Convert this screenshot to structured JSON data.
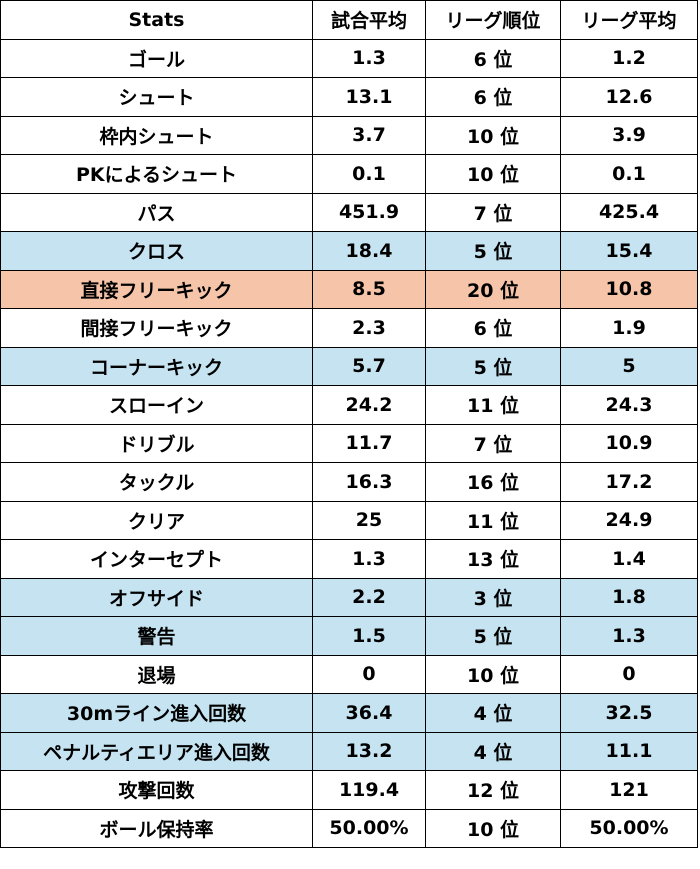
{
  "colors": {
    "highlight_blue": "#c5e3f1",
    "highlight_orange": "#f6c5a9",
    "border": "#000000",
    "background": "#ffffff"
  },
  "table": {
    "headers": [
      "Stats",
      "試合平均",
      "リーグ順位",
      "リーグ平均"
    ],
    "rows": [
      {
        "stat": "ゴール",
        "avg": "1.3",
        "rank": "6 位",
        "league_avg": "1.2",
        "highlight": "none"
      },
      {
        "stat": "シュート",
        "avg": "13.1",
        "rank": "6 位",
        "league_avg": "12.6",
        "highlight": "none"
      },
      {
        "stat": "枠内シュート",
        "avg": "3.7",
        "rank": "10 位",
        "league_avg": "3.9",
        "highlight": "none"
      },
      {
        "stat": "PKによるシュート",
        "avg": "0.1",
        "rank": "10 位",
        "league_avg": "0.1",
        "highlight": "none"
      },
      {
        "stat": "パス",
        "avg": "451.9",
        "rank": "7 位",
        "league_avg": "425.4",
        "highlight": "none"
      },
      {
        "stat": "クロス",
        "avg": "18.4",
        "rank": "5 位",
        "league_avg": "15.4",
        "highlight": "blue"
      },
      {
        "stat": "直接フリーキック",
        "avg": "8.5",
        "rank": "20 位",
        "league_avg": "10.8",
        "highlight": "orange"
      },
      {
        "stat": "間接フリーキック",
        "avg": "2.3",
        "rank": "6 位",
        "league_avg": "1.9",
        "highlight": "none"
      },
      {
        "stat": "コーナーキック",
        "avg": "5.7",
        "rank": "5 位",
        "league_avg": "5",
        "highlight": "blue"
      },
      {
        "stat": "スローイン",
        "avg": "24.2",
        "rank": "11 位",
        "league_avg": "24.3",
        "highlight": "none"
      },
      {
        "stat": "ドリブル",
        "avg": "11.7",
        "rank": "7 位",
        "league_avg": "10.9",
        "highlight": "none"
      },
      {
        "stat": "タックル",
        "avg": "16.3",
        "rank": "16 位",
        "league_avg": "17.2",
        "highlight": "none"
      },
      {
        "stat": "クリア",
        "avg": "25",
        "rank": "11 位",
        "league_avg": "24.9",
        "highlight": "none"
      },
      {
        "stat": "インターセプト",
        "avg": "1.3",
        "rank": "13 位",
        "league_avg": "1.4",
        "highlight": "none"
      },
      {
        "stat": "オフサイド",
        "avg": "2.2",
        "rank": "3 位",
        "league_avg": "1.8",
        "highlight": "blue"
      },
      {
        "stat": "警告",
        "avg": "1.5",
        "rank": "5 位",
        "league_avg": "1.3",
        "highlight": "blue"
      },
      {
        "stat": "退場",
        "avg": "0",
        "rank": "10 位",
        "league_avg": "0",
        "highlight": "none"
      },
      {
        "stat": "30mライン進入回数",
        "avg": "36.4",
        "rank": "4 位",
        "league_avg": "32.5",
        "highlight": "blue"
      },
      {
        "stat": "ペナルティエリア進入回数",
        "avg": "13.2",
        "rank": "4 位",
        "league_avg": "11.1",
        "highlight": "blue"
      },
      {
        "stat": "攻撃回数",
        "avg": "119.4",
        "rank": "12 位",
        "league_avg": "121",
        "highlight": "none"
      },
      {
        "stat": "ボール保持率",
        "avg": "50.00%",
        "rank": "10 位",
        "league_avg": "50.00%",
        "highlight": "none"
      }
    ]
  }
}
